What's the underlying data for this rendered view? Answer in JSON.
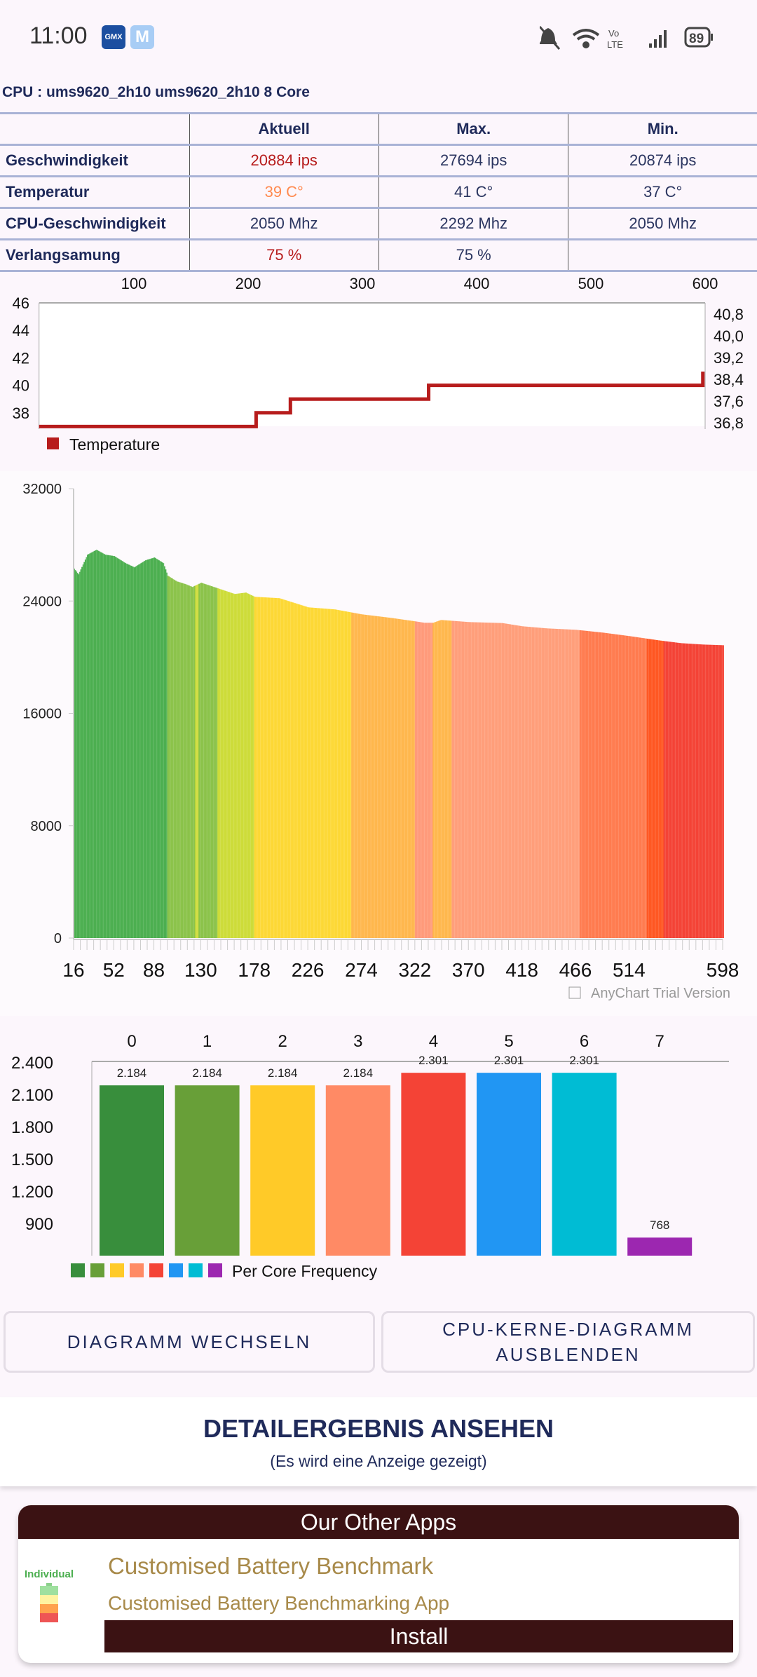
{
  "status_bar": {
    "time": "11:00",
    "notif_icons": [
      "gmx-icon",
      "mail-icon"
    ],
    "battery": "89",
    "network": "Vo LTE"
  },
  "cpu_title": "CPU : ums9620_2h10 ums9620_2h10 8 Core",
  "table": {
    "headers": [
      "",
      "Aktuell",
      "Max.",
      "Min."
    ],
    "rows": [
      [
        "Geschwindigkeit",
        "20884 ips",
        "27694 ips",
        "20874 ips"
      ],
      [
        "Temperatur",
        "39 C°",
        "41 C°",
        "37 C°"
      ],
      [
        "CPU-Geschwindigkeit",
        "2050 Mhz",
        "2292 Mhz",
        "2050 Mhz"
      ],
      [
        "Verlangsamung",
        "75 %",
        "75 %",
        ""
      ]
    ]
  },
  "chart_data": [
    {
      "type": "line",
      "title": "",
      "legend": [
        "Temperature"
      ],
      "legend_placement": "bottom-left",
      "color": "#b71c1c",
      "x_ticks": [
        "100",
        "200",
        "300",
        "400",
        "500",
        "600"
      ],
      "x_tick_values": [
        100,
        200,
        300,
        400,
        500,
        600
      ],
      "y_ticks_left": [
        "46",
        "44",
        "42",
        "40",
        "38"
      ],
      "y_tick_left_values": [
        46,
        44,
        42,
        40,
        38
      ],
      "y_ticks_right": [
        "40,8",
        "40,0",
        "39,2",
        "38,4",
        "37,6",
        "36,8"
      ],
      "xlim": [
        17,
        600
      ],
      "ylim": [
        36.6,
        46
      ],
      "points": [
        [
          17,
          37
        ],
        [
          207,
          37
        ],
        [
          207,
          38
        ],
        [
          237,
          38
        ],
        [
          237,
          39
        ],
        [
          358,
          39
        ],
        [
          358,
          40
        ],
        [
          598,
          40
        ],
        [
          598,
          41
        ]
      ]
    },
    {
      "type": "bar",
      "title": "",
      "watermark": "AnyChart Trial Version",
      "ylim": [
        0,
        32000
      ],
      "y_ticks": [
        "32000",
        "24000",
        "16000",
        "8000",
        "0"
      ],
      "y_tick_values": [
        32000,
        24000,
        16000,
        8000,
        0
      ],
      "x_ticks": [
        "16",
        "52",
        "88",
        "130",
        "178",
        "226",
        "274",
        "322",
        "370",
        "418",
        "466",
        "514",
        "598"
      ],
      "xlim": [
        16,
        598
      ],
      "keypoints_x": [
        16,
        20,
        28,
        36,
        44,
        52,
        62,
        70,
        80,
        88,
        96,
        100,
        108,
        116,
        122,
        130,
        145,
        160,
        170,
        178,
        200,
        226,
        250,
        274,
        300,
        322,
        330,
        338,
        345,
        370,
        400,
        418,
        440,
        466,
        490,
        514,
        540,
        560,
        580,
        598
      ],
      "keypoints_y": [
        26300,
        25900,
        27300,
        27650,
        27300,
        27200,
        26700,
        26400,
        26900,
        27100,
        26700,
        25800,
        25400,
        25200,
        25000,
        25300,
        24900,
        24500,
        24600,
        24300,
        24200,
        23550,
        23400,
        23050,
        22800,
        22550,
        22450,
        22450,
        22650,
        22500,
        22430,
        22200,
        22050,
        21950,
        21750,
        21500,
        21200,
        21000,
        20900,
        20850
      ],
      "color_bands": [
        [
          16,
          100,
          "#4caf50"
        ],
        [
          100,
          125,
          "#8bc34a"
        ],
        [
          125,
          128,
          "#cddc39"
        ],
        [
          128,
          145,
          "#8bc34a"
        ],
        [
          145,
          178,
          "#cddc39"
        ],
        [
          178,
          265,
          "#fdd835"
        ],
        [
          265,
          322,
          "#ffb74d"
        ],
        [
          322,
          338,
          "#ff9a7a"
        ],
        [
          338,
          355,
          "#ffb74d"
        ],
        [
          355,
          470,
          "#ff9e7a"
        ],
        [
          470,
          530,
          "#ff7b4f"
        ],
        [
          530,
          545,
          "#ff5722"
        ],
        [
          545,
          599,
          "#f44336"
        ]
      ]
    },
    {
      "type": "bar",
      "title": "",
      "legend": [
        "Per Core Frequency"
      ],
      "legend_placement": "bottom-left",
      "categories": [
        "0",
        "1",
        "2",
        "3",
        "4",
        "5",
        "6",
        "7"
      ],
      "values": [
        2184,
        2184,
        2184,
        2184,
        2301,
        2301,
        2301,
        768
      ],
      "value_labels": [
        "2.184",
        "2.184",
        "2.184",
        "2.184",
        "2.301",
        "2.301",
        "2.301",
        "768"
      ],
      "colors": [
        "#388e3c",
        "#689f38",
        "#ffca28",
        "#ff8a65",
        "#f44336",
        "#2196f3",
        "#00bcd4",
        "#9c27b0"
      ],
      "y_ticks": [
        "2.400",
        "2.100",
        "1.800",
        "1.500",
        "1.200",
        "900"
      ],
      "y_tick_values": [
        2400,
        2100,
        1800,
        1500,
        1200,
        900
      ],
      "ylim": [
        600,
        2400
      ]
    }
  ],
  "buttons": {
    "switch": "DIAGRAMM WECHSELN",
    "hide_line1": "CPU-KERNE-DIAGRAMM",
    "hide_line2": "AUSBLENDEN"
  },
  "detail": {
    "title": "DETAILERGEBNIS ANSEHEN",
    "subtitle": "(Es wird eine Anzeige gezeigt)"
  },
  "other_apps": {
    "header": "Our Other Apps",
    "app_icon_text": "Individual",
    "app_name": "Customised Battery Benchmark",
    "app_desc": "Customised Battery Benchmarking App",
    "install": "Install"
  }
}
